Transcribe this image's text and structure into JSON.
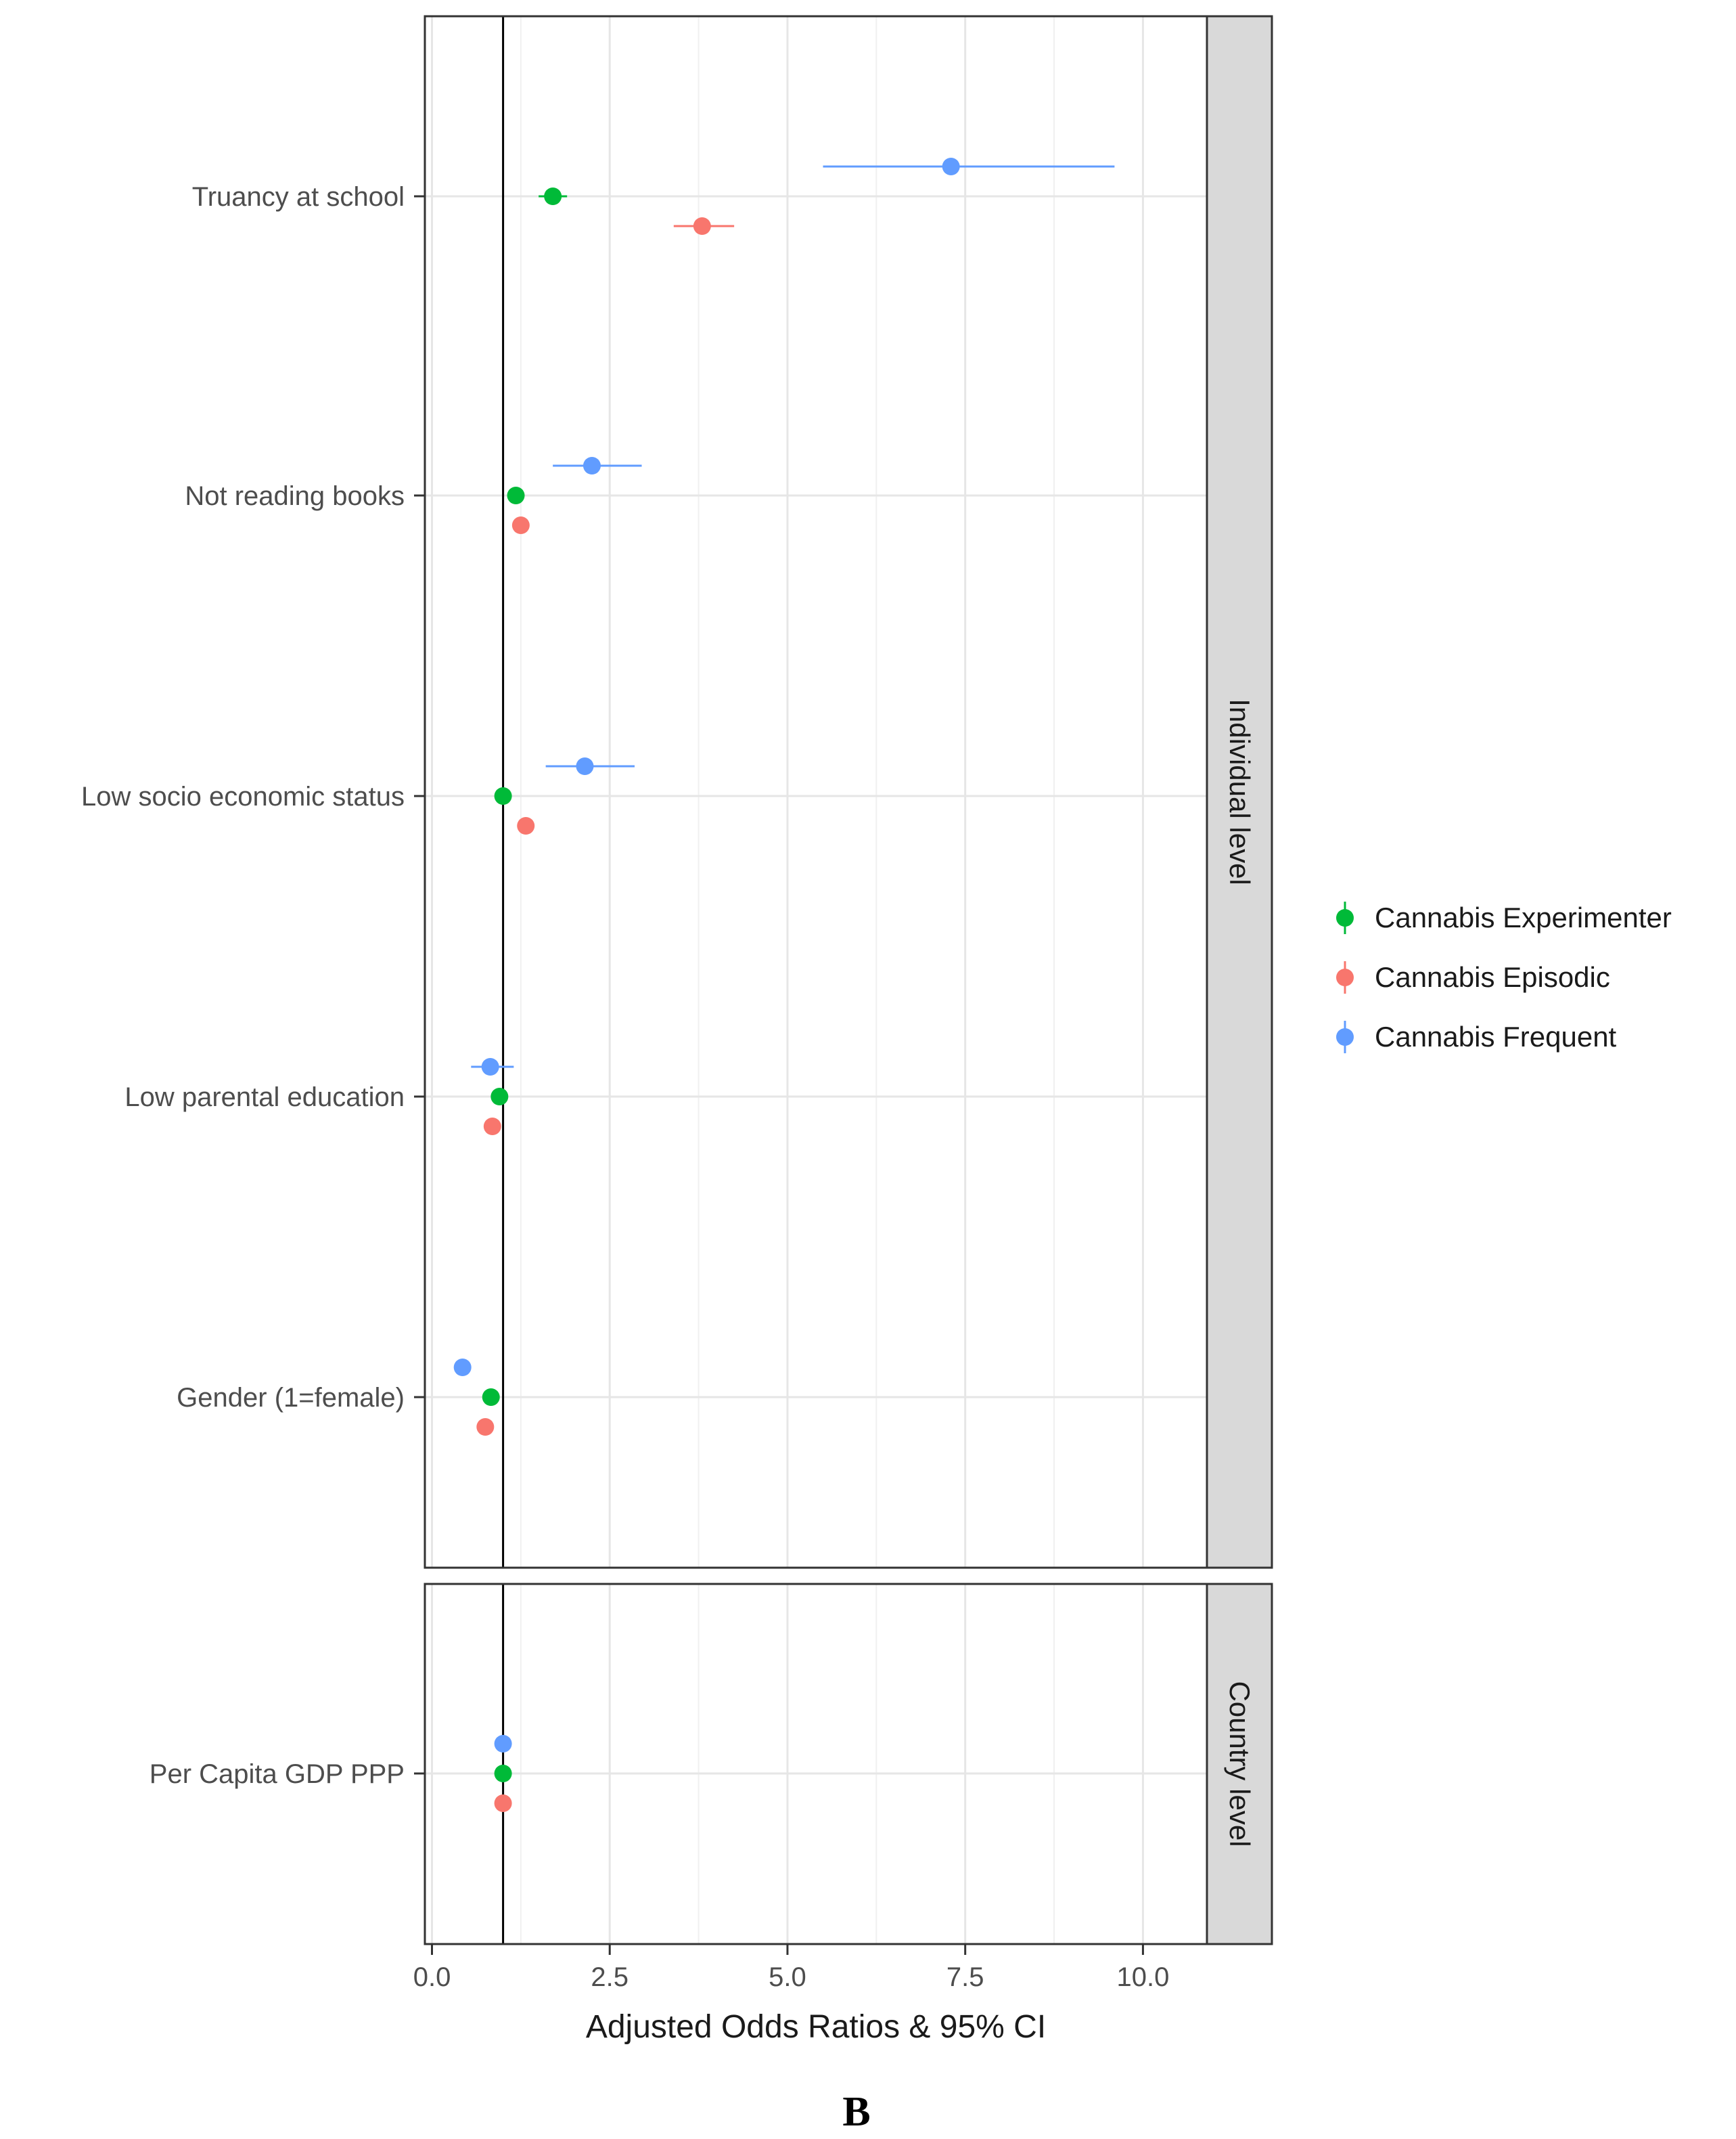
{
  "chart_data": {
    "type": "scatter",
    "panel_tag": "B",
    "xlabel": "Adjusted Odds Ratios & 95% CI",
    "xlim": [
      -0.1,
      10.9
    ],
    "xticks": [
      0.0,
      2.5,
      5.0,
      7.5,
      10.0
    ],
    "xtick_labels": [
      "0.0",
      "2.5",
      "5.0",
      "7.5",
      "10.0"
    ],
    "reference_line": 1.0,
    "grid": true,
    "legend_position": "right",
    "facets": [
      {
        "label": "Individual level",
        "categories": [
          "Gender (1=female)",
          "Low parental education",
          "Low socio economic status",
          "Not reading books",
          "Truancy at school"
        ]
      },
      {
        "label": "Country level",
        "categories": [
          "Per Capita GDP PPP"
        ]
      }
    ],
    "series": [
      {
        "name": "Cannabis Experimenter",
        "color": "#00BA38",
        "points": [
          {
            "facet": 0,
            "category": "Truancy at school",
            "value": 1.7,
            "low": 1.5,
            "high": 1.9
          },
          {
            "facet": 0,
            "category": "Not reading books",
            "value": 1.18,
            "low": 1.1,
            "high": 1.26
          },
          {
            "facet": 0,
            "category": "Low socio economic status",
            "value": 1.0,
            "low": 0.93,
            "high": 1.07
          },
          {
            "facet": 0,
            "category": "Low parental education",
            "value": 0.95,
            "low": 0.89,
            "high": 1.01
          },
          {
            "facet": 0,
            "category": "Gender (1=female)",
            "value": 0.83,
            "low": 0.79,
            "high": 0.87
          },
          {
            "facet": 1,
            "category": "Per Capita GDP PPP",
            "value": 1.0,
            "low": 0.99,
            "high": 1.01
          }
        ]
      },
      {
        "name": "Cannabis Episodic",
        "color": "#F8766D",
        "points": [
          {
            "facet": 0,
            "category": "Truancy at school",
            "value": 3.8,
            "low": 3.4,
            "high": 4.25
          },
          {
            "facet": 0,
            "category": "Not reading books",
            "value": 1.25,
            "low": 1.15,
            "high": 1.35
          },
          {
            "facet": 0,
            "category": "Low socio economic status",
            "value": 1.32,
            "low": 1.21,
            "high": 1.43
          },
          {
            "facet": 0,
            "category": "Low parental education",
            "value": 0.85,
            "low": 0.78,
            "high": 0.92
          },
          {
            "facet": 0,
            "category": "Gender (1=female)",
            "value": 0.75,
            "low": 0.69,
            "high": 0.81
          },
          {
            "facet": 1,
            "category": "Per Capita GDP PPP",
            "value": 1.0,
            "low": 0.99,
            "high": 1.01
          }
        ]
      },
      {
        "name": "Cannabis Frequent",
        "color": "#619CFF",
        "points": [
          {
            "facet": 0,
            "category": "Truancy at school",
            "value": 7.3,
            "low": 5.5,
            "high": 9.6
          },
          {
            "facet": 0,
            "category": "Not reading books",
            "value": 2.25,
            "low": 1.7,
            "high": 2.95
          },
          {
            "facet": 0,
            "category": "Low socio economic status",
            "value": 2.15,
            "low": 1.6,
            "high": 2.85
          },
          {
            "facet": 0,
            "category": "Low parental education",
            "value": 0.82,
            "low": 0.55,
            "high": 1.15
          },
          {
            "facet": 0,
            "category": "Gender (1=female)",
            "value": 0.43,
            "low": 0.36,
            "high": 0.5
          },
          {
            "facet": 1,
            "category": "Per Capita GDP PPP",
            "value": 1.0,
            "low": 0.98,
            "high": 1.02
          }
        ]
      }
    ]
  }
}
